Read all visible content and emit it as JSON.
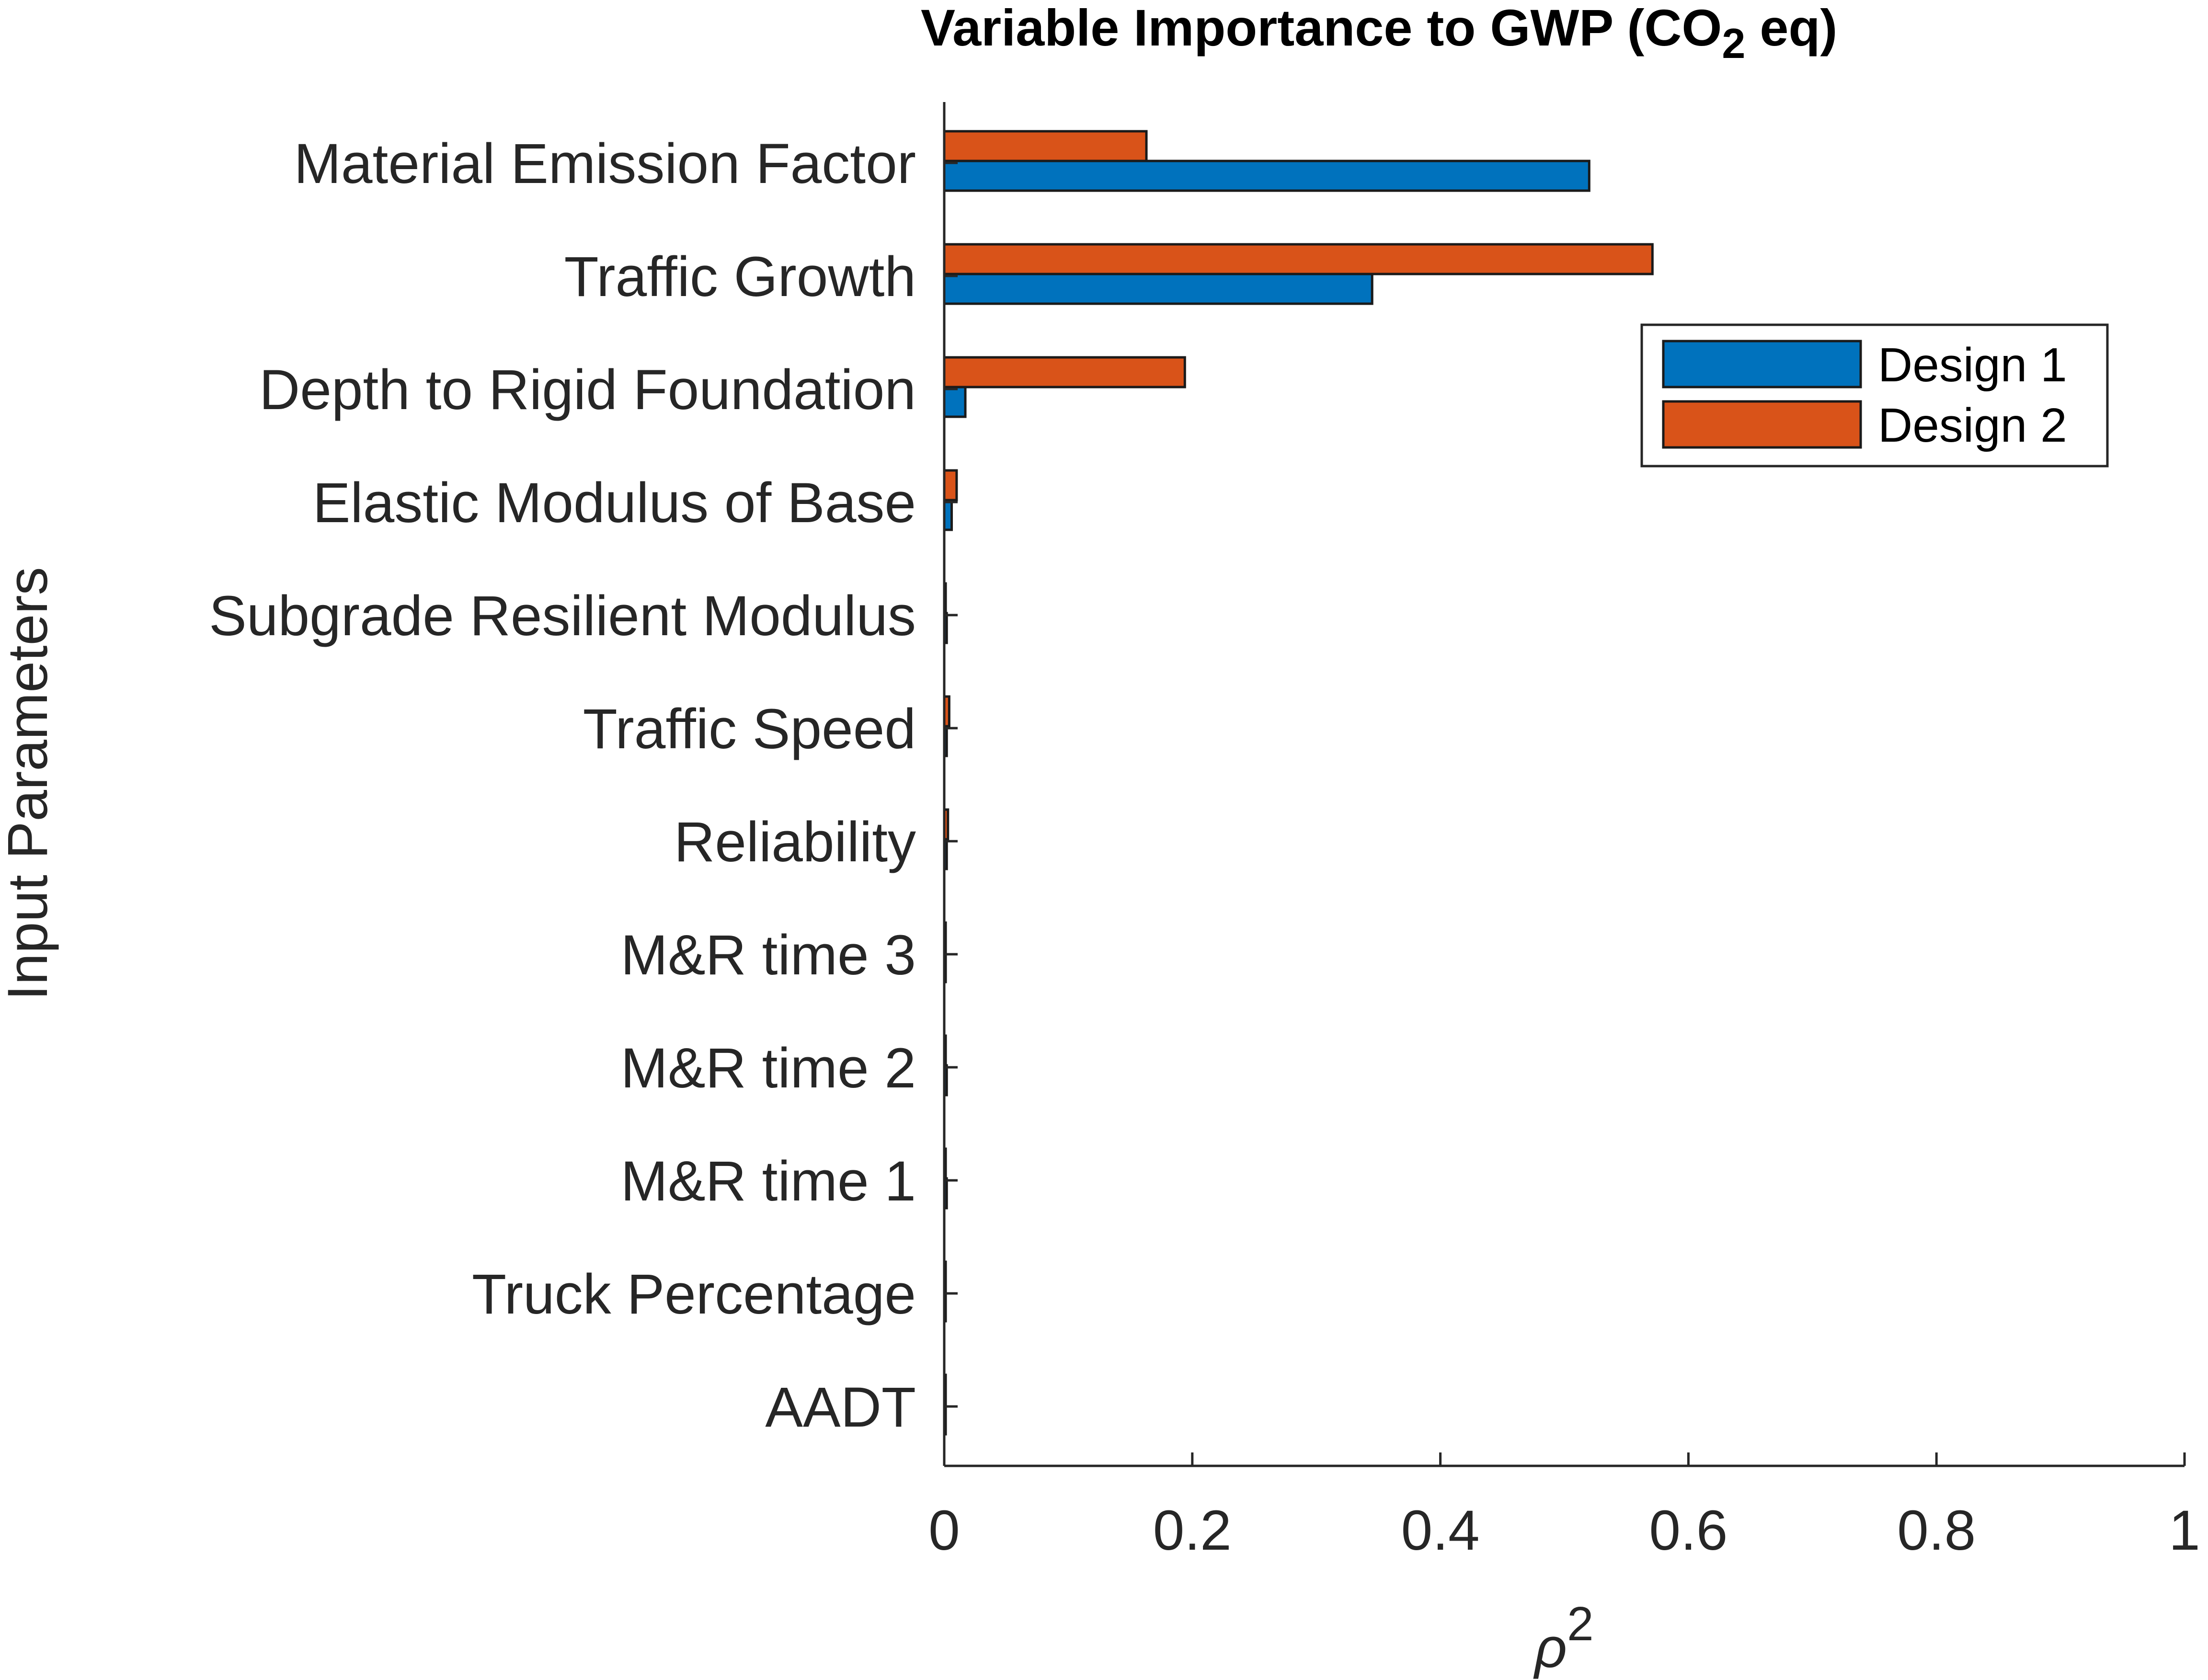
{
  "chart_data": {
    "type": "bar",
    "orientation": "horizontal",
    "title": {
      "main": "Variable Importance to GWP (CO",
      "subscript": "2",
      "suffix": " eq)"
    },
    "xlabel": {
      "base": "ρ",
      "superscript": "2"
    },
    "ylabel": "Input Parameters",
    "xlim": [
      0,
      1
    ],
    "xticks": [
      0,
      0.2,
      0.4,
      0.6,
      0.8,
      1
    ],
    "xtick_labels": [
      "0",
      "0.2",
      "0.4",
      "0.6",
      "0.8",
      "1"
    ],
    "grid": false,
    "legend_position": "top-right",
    "categories": [
      "Material Emission Factor",
      "Traffic Growth",
      "Depth to Rigid Foundation",
      "Elastic Modulus of Base",
      "Subgrade Resilient Modulus",
      "Traffic Speed",
      "Reliability",
      "M&R time 3",
      "M&R time 2",
      "M&R time 1",
      "Truck Percentage",
      "AADT"
    ],
    "series": [
      {
        "name": "Design 1",
        "color": "#0072BD",
        "values": [
          0.52,
          0.345,
          0.017,
          0.006,
          0.002,
          0.002,
          0.002,
          0.001,
          0.002,
          0.002,
          0.0005,
          0.0005
        ]
      },
      {
        "name": "Design 2",
        "color": "#D95319",
        "values": [
          0.163,
          0.571,
          0.194,
          0.01,
          0.001,
          0.004,
          0.003,
          0.0005,
          0.001,
          0.001,
          0.0005,
          0.0005
        ]
      }
    ]
  }
}
